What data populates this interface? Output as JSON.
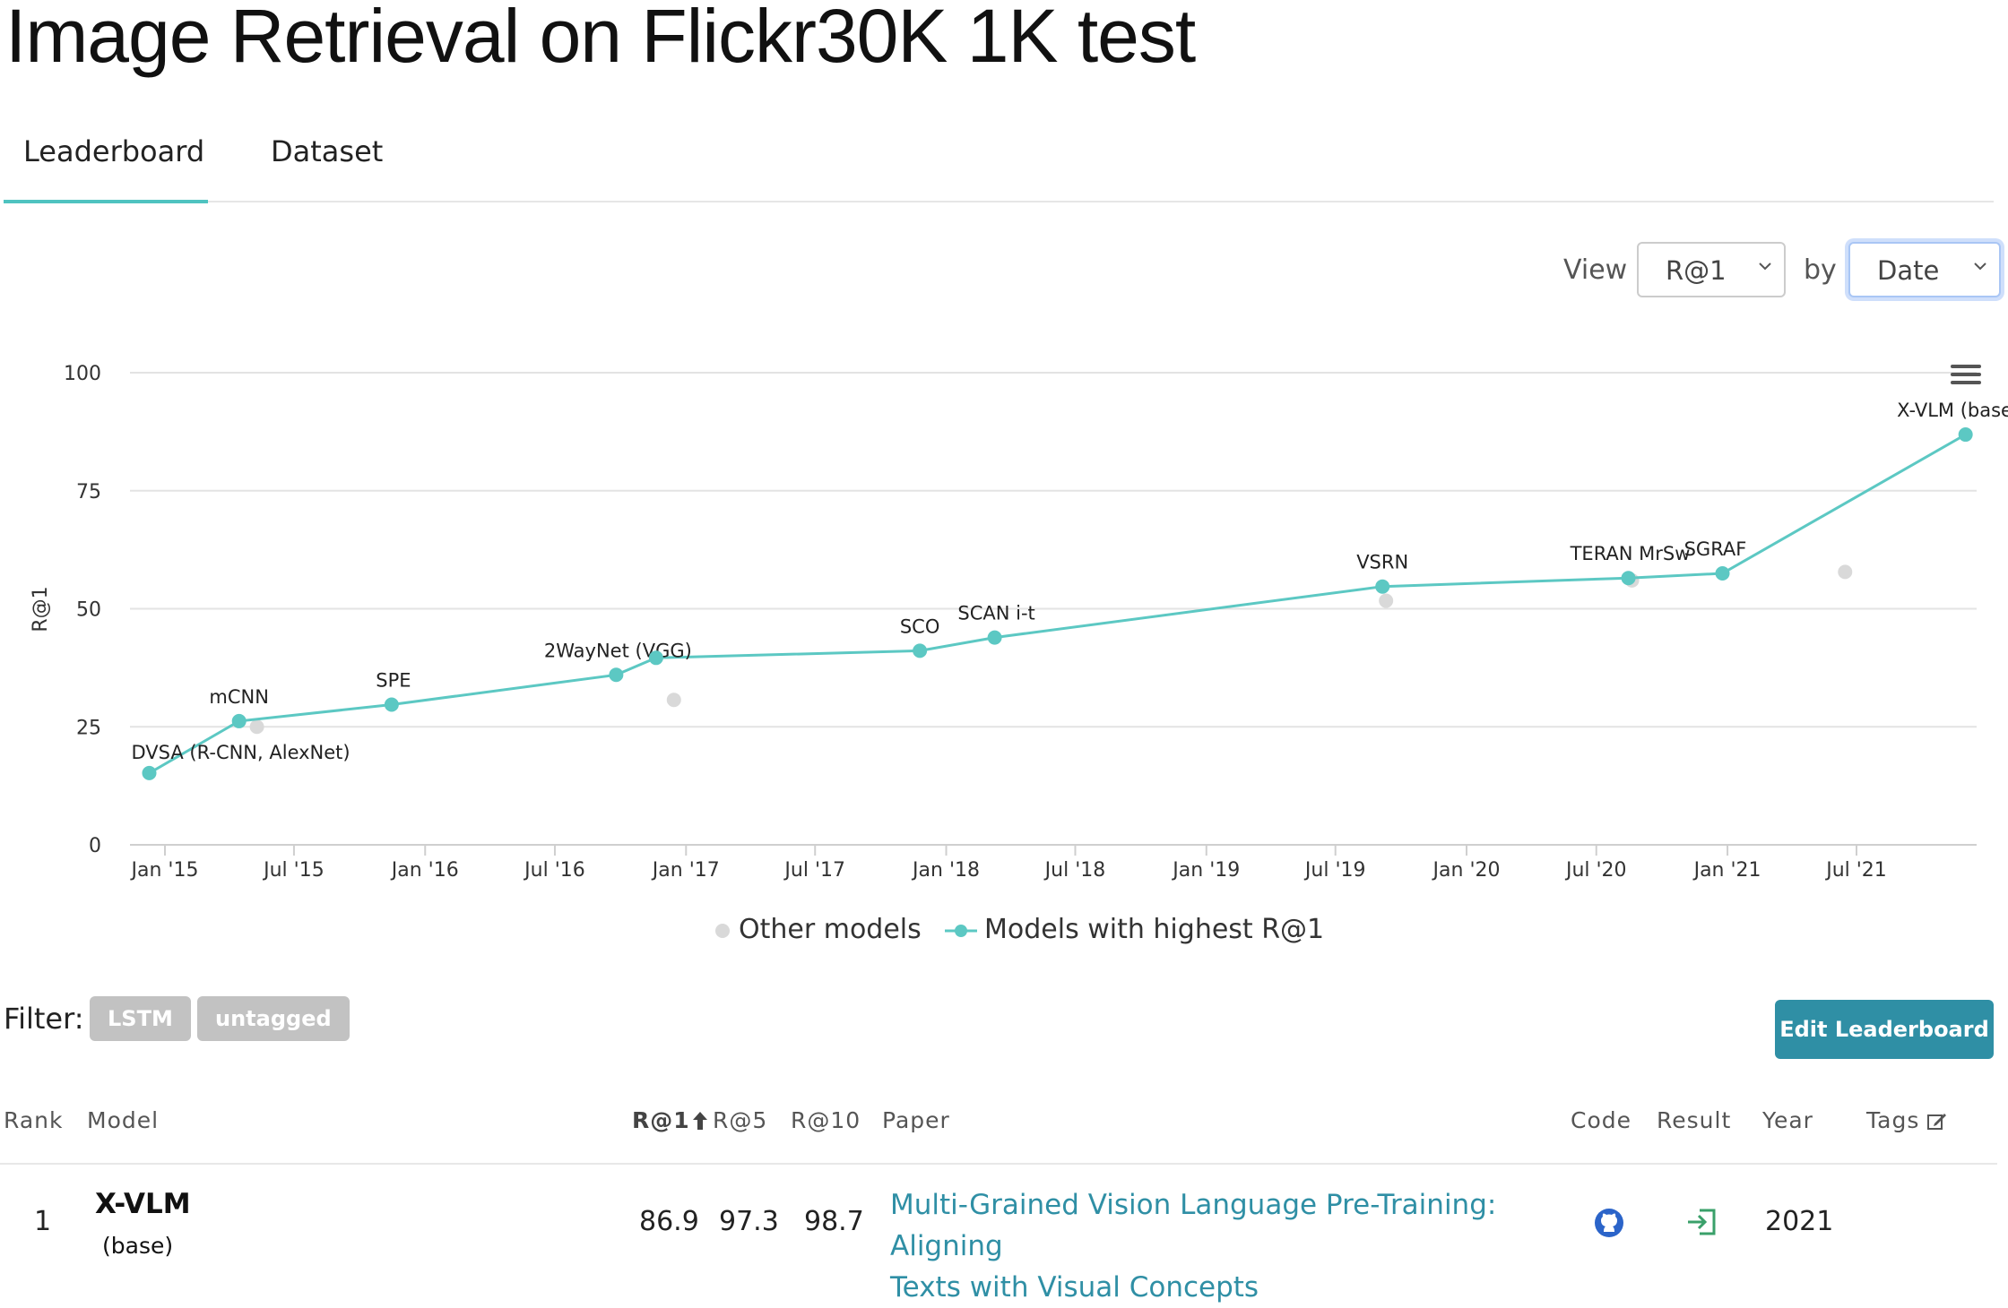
{
  "page": {
    "title": "Image Retrieval on Flickr30K 1K test"
  },
  "tabs": [
    {
      "label": "Leaderboard",
      "active": true
    },
    {
      "label": "Dataset",
      "active": false
    }
  ],
  "controls": {
    "view_label": "View",
    "metric_value": "R@1",
    "by_label": "by",
    "sort_value": "Date",
    "menu_icon": "hamburger-menu-icon"
  },
  "chart_data": {
    "type": "line",
    "ylabel": "R@1",
    "xlabel": "",
    "ylim": [
      0,
      100
    ],
    "y_ticks": [
      0,
      25,
      50,
      75,
      100
    ],
    "x_ticks": [
      "Jan '15",
      "Jul '15",
      "Jan '16",
      "Jul '16",
      "Jan '17",
      "Jul '17",
      "Jan '18",
      "Jul '18",
      "Jan '19",
      "Jul '19",
      "Jan '20",
      "Jul '20",
      "Jan '21",
      "Jul '21"
    ],
    "x_tick_dates": [
      "2015-01-01",
      "2015-07-01",
      "2016-01-01",
      "2016-07-01",
      "2017-01-01",
      "2017-07-01",
      "2018-01-01",
      "2018-07-01",
      "2019-01-01",
      "2019-07-01",
      "2020-01-01",
      "2020-07-01",
      "2021-01-01",
      "2021-07-01"
    ],
    "series": [
      {
        "name": "Models with highest R@1",
        "color": "#5cc8c3",
        "points": [
          {
            "x": "2014-12-10",
            "y": 15.2,
            "label": "DVSA (R-CNN, AlexNet)"
          },
          {
            "x": "2015-04-15",
            "y": 26.2,
            "label": "mCNN"
          },
          {
            "x": "2015-11-15",
            "y": 29.7,
            "label": "SPE"
          },
          {
            "x": "2016-09-25",
            "y": 36.0,
            "label": "2WayNet (VGG)"
          },
          {
            "x": "2016-11-20",
            "y": 39.6,
            "label": ""
          },
          {
            "x": "2017-11-25",
            "y": 41.1,
            "label": "SCO"
          },
          {
            "x": "2018-03-10",
            "y": 43.9,
            "label": "SCAN i-t"
          },
          {
            "x": "2019-09-05",
            "y": 54.7,
            "label": "VSRN"
          },
          {
            "x": "2020-08-15",
            "y": 56.5,
            "label": "TERAN MrSw"
          },
          {
            "x": "2020-12-25",
            "y": 57.5,
            "label": "SGRAF"
          },
          {
            "x": "2021-12-01",
            "y": 86.9,
            "label": "X-VLM (base)"
          }
        ]
      },
      {
        "name": "Other models",
        "color": "#d9d9d9",
        "points": [
          {
            "x": "2015-05-10",
            "y": 25.0
          },
          {
            "x": "2016-12-15",
            "y": 30.7
          },
          {
            "x": "2019-09-10",
            "y": 51.7
          },
          {
            "x": "2020-08-20",
            "y": 56.0
          },
          {
            "x": "2021-06-15",
            "y": 57.8
          }
        ]
      }
    ],
    "legend": [
      "Other models",
      "Models with highest R@1"
    ],
    "legend_position": "bottom-center",
    "grid": true
  },
  "filter": {
    "label": "Filter:",
    "tags": [
      "LSTM",
      "untagged"
    ],
    "edit_button": "Edit Leaderboard"
  },
  "table": {
    "headers": {
      "rank": "Rank",
      "model": "Model",
      "r1": "R@1",
      "r5": "R@5",
      "r10": "R@10",
      "paper": "Paper",
      "code": "Code",
      "result": "Result",
      "year": "Year",
      "tags": "Tags"
    },
    "rows": [
      {
        "rank": "1",
        "model": "X-VLM",
        "variant": "(base)",
        "r1": "86.9",
        "r5": "97.3",
        "r10": "98.7",
        "paper_line1": "Multi-Grained Vision Language Pre-Training: Aligning",
        "paper_line2": "Texts with Visual Concepts",
        "code_icon": "github-icon",
        "result_icon": "result-link-icon",
        "year": "2021"
      }
    ]
  }
}
